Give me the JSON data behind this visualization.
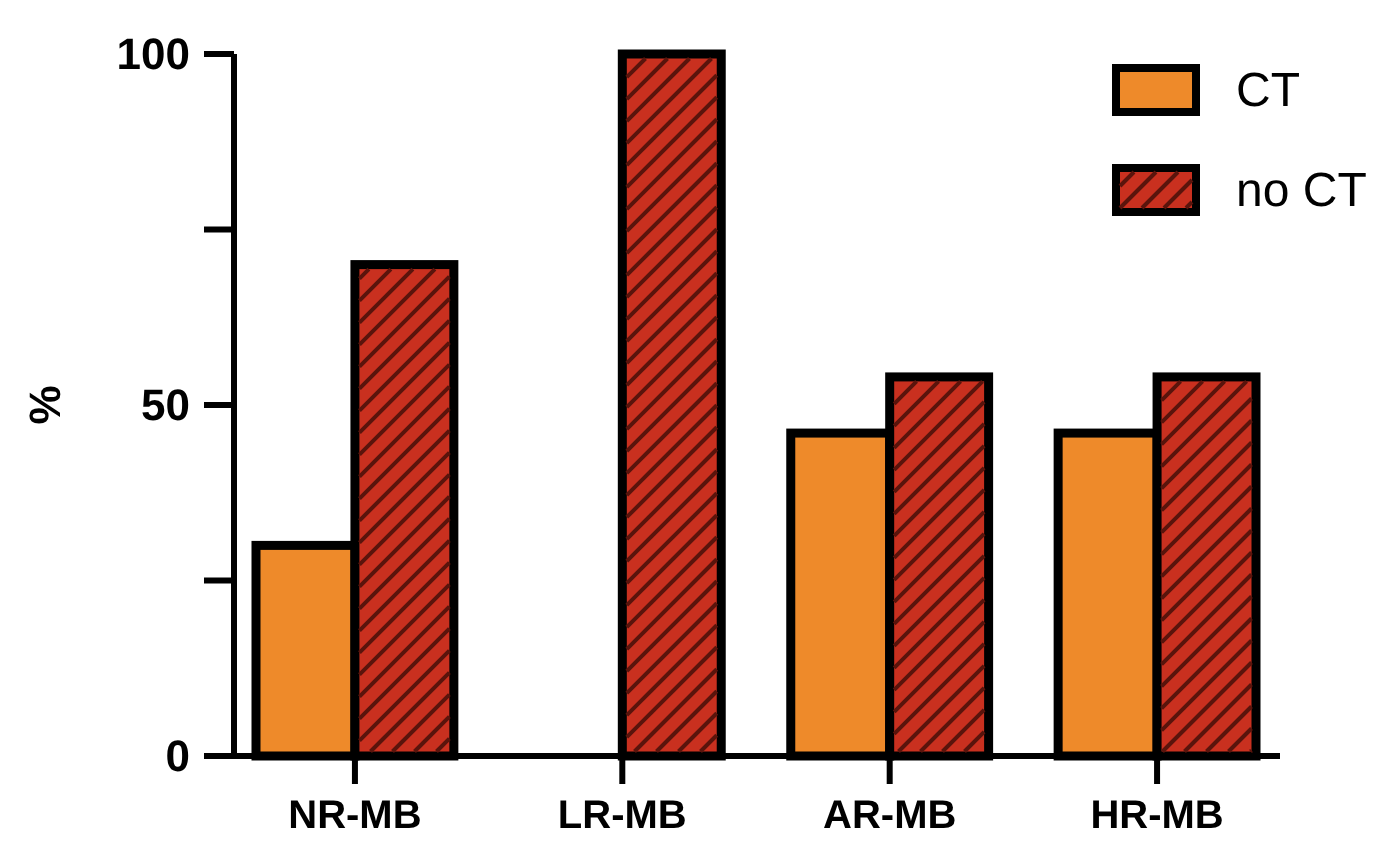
{
  "chart_data": {
    "type": "bar",
    "ylabel": "%",
    "categories": [
      "NR-MB",
      "LR-MB",
      "AR-MB",
      "HR-MB"
    ],
    "series": [
      {
        "name": "CT",
        "color": "#ee8a2a",
        "values": [
          30,
          0,
          46,
          46
        ]
      },
      {
        "name": "no CT",
        "color": "#c9301f",
        "values": [
          70,
          100,
          54,
          54
        ]
      }
    ],
    "ylim": [
      0,
      100
    ],
    "yticks": [
      0,
      {
        "value": 25,
        "label": null
      },
      50,
      {
        "value": 75,
        "label": null
      },
      100
    ],
    "grid": false,
    "legend": "top right"
  }
}
